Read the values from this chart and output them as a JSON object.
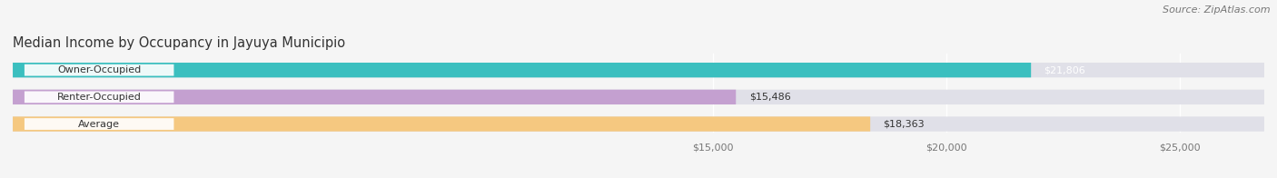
{
  "title": "Median Income by Occupancy in Jayuya Municipio",
  "source": "Source: ZipAtlas.com",
  "categories": [
    "Owner-Occupied",
    "Renter-Occupied",
    "Average"
  ],
  "values": [
    21806,
    15486,
    18363
  ],
  "bar_colors": [
    "#3bbfbf",
    "#c4a0d0",
    "#f5c880"
  ],
  "value_labels": [
    "$21,806",
    "$15,486",
    "$18,363"
  ],
  "x_ticks": [
    15000,
    20000,
    25000
  ],
  "x_tick_labels": [
    "$15,000",
    "$20,000",
    "$25,000"
  ],
  "xlim_left": 0,
  "xlim_right": 26800,
  "title_fontsize": 10.5,
  "source_fontsize": 8,
  "label_fontsize": 8,
  "value_fontsize": 8,
  "background_color": "#f5f5f5",
  "bar_bg_color": "#e0e0e8",
  "white_label_bg": "#ffffff"
}
